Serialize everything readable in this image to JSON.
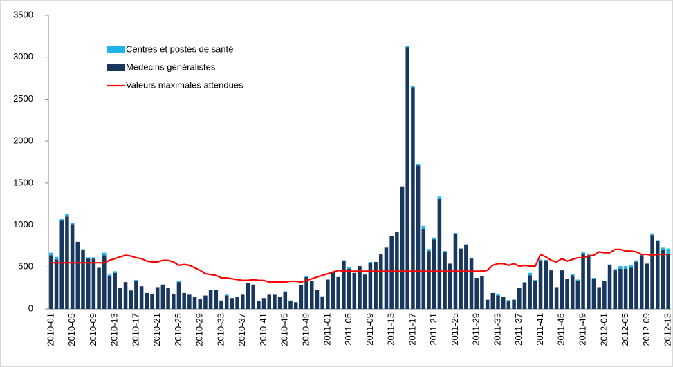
{
  "chart_data": {
    "type": "bar",
    "stacked": true,
    "categories": [
      "2010-01",
      null,
      null,
      null,
      "2010-05",
      null,
      null,
      null,
      "2010-09",
      null,
      null,
      null,
      "2010-13",
      null,
      null,
      null,
      "2010-17",
      null,
      null,
      null,
      "2010-21",
      null,
      null,
      null,
      "2010-25",
      null,
      null,
      null,
      "2010-29",
      null,
      null,
      null,
      "2010-33",
      null,
      null,
      null,
      "2010-37",
      null,
      null,
      null,
      "2010-41",
      null,
      null,
      null,
      "2010-45",
      null,
      null,
      null,
      "2010-49",
      null,
      null,
      null,
      "2011-01",
      null,
      null,
      null,
      "2011-05",
      null,
      null,
      null,
      "2011-09",
      null,
      null,
      null,
      "2011-13",
      null,
      null,
      null,
      "2011-17",
      null,
      null,
      null,
      "2011-21",
      null,
      null,
      null,
      "2011-25",
      null,
      null,
      null,
      "2011-29",
      null,
      null,
      null,
      "2011-33",
      null,
      null,
      null,
      "2011-37",
      null,
      null,
      null,
      "2011-41",
      null,
      null,
      null,
      "2011-45",
      null,
      null,
      null,
      "2011-49",
      null,
      null,
      null,
      "2012-01",
      null,
      null,
      null,
      "2012-05",
      null,
      null,
      null,
      "2012-09",
      null,
      null,
      null,
      "2012-13"
    ],
    "series": [
      {
        "name": "Centres et postes de santé",
        "color": "#1fb4ea",
        "kind": "bar",
        "values": [
          30,
          30,
          20,
          30,
          15,
          0,
          0,
          15,
          15,
          0,
          30,
          20,
          20,
          0,
          0,
          0,
          15,
          0,
          0,
          0,
          0,
          0,
          0,
          0,
          10,
          0,
          0,
          0,
          0,
          0,
          0,
          0,
          0,
          10,
          0,
          0,
          0,
          0,
          0,
          0,
          0,
          0,
          0,
          0,
          10,
          0,
          0,
          0,
          15,
          0,
          0,
          0,
          0,
          0,
          0,
          10,
          15,
          0,
          0,
          0,
          10,
          0,
          0,
          0,
          0,
          0,
          0,
          10,
          15,
          15,
          40,
          25,
          20,
          30,
          10,
          0,
          15,
          0,
          10,
          0,
          0,
          0,
          0,
          0,
          15,
          0,
          15,
          0,
          0,
          10,
          30,
          15,
          20,
          15,
          0,
          0,
          0,
          0,
          20,
          20,
          20,
          20,
          10,
          0,
          0,
          10,
          15,
          30,
          30,
          30,
          20,
          10,
          0,
          20,
          10,
          20,
          60
        ]
      },
      {
        "name": "Médecins généralistes",
        "color": "#17375e",
        "kind": "bar",
        "values": [
          640,
          590,
          1050,
          1100,
          1010,
          800,
          710,
          600,
          600,
          490,
          640,
          390,
          430,
          250,
          320,
          220,
          330,
          270,
          190,
          180,
          260,
          290,
          250,
          180,
          320,
          190,
          170,
          140,
          120,
          160,
          230,
          230,
          100,
          160,
          130,
          140,
          170,
          310,
          290,
          90,
          130,
          170,
          170,
          140,
          200,
          100,
          80,
          280,
          380,
          330,
          230,
          150,
          350,
          440,
          380,
          570,
          480,
          430,
          510,
          410,
          550,
          560,
          650,
          730,
          870,
          920,
          1460,
          3120,
          2640,
          1710,
          950,
          690,
          830,
          1310,
          680,
          540,
          890,
          720,
          760,
          600,
          370,
          390,
          110,
          190,
          160,
          140,
          90,
          110,
          250,
          310,
          400,
          330,
          570,
          570,
          460,
          260,
          460,
          360,
          400,
          330,
          660,
          640,
          360,
          260,
          330,
          520,
          460,
          480,
          480,
          490,
          560,
          640,
          540,
          880,
          810,
          710,
          660
        ]
      },
      {
        "name": "Valeurs maximales attendues",
        "color": "#ff0000",
        "kind": "line",
        "values": [
          550,
          550,
          550,
          550,
          550,
          550,
          550,
          550,
          550,
          550,
          550,
          580,
          600,
          620,
          640,
          630,
          610,
          600,
          570,
          560,
          560,
          580,
          580,
          560,
          520,
          530,
          520,
          490,
          460,
          420,
          410,
          400,
          370,
          370,
          360,
          350,
          340,
          340,
          350,
          340,
          340,
          320,
          320,
          320,
          320,
          330,
          330,
          320,
          340,
          360,
          380,
          400,
          420,
          440,
          460,
          450,
          450,
          450,
          450,
          450,
          450,
          450,
          450,
          450,
          450,
          450,
          450,
          450,
          450,
          450,
          450,
          450,
          450,
          450,
          450,
          450,
          450,
          450,
          450,
          450,
          450,
          450,
          460,
          520,
          540,
          540,
          520,
          540,
          510,
          520,
          510,
          510,
          650,
          620,
          580,
          560,
          600,
          570,
          590,
          610,
          610,
          630,
          640,
          680,
          670,
          670,
          710,
          710,
          690,
          690,
          680,
          650,
          650,
          640,
          650,
          650,
          650
        ]
      }
    ],
    "ylim": [
      0,
      3500
    ],
    "yticks": [
      0,
      500,
      1000,
      1500,
      2000,
      2500,
      3000,
      3500
    ],
    "grid": false,
    "legend": "top-left"
  }
}
